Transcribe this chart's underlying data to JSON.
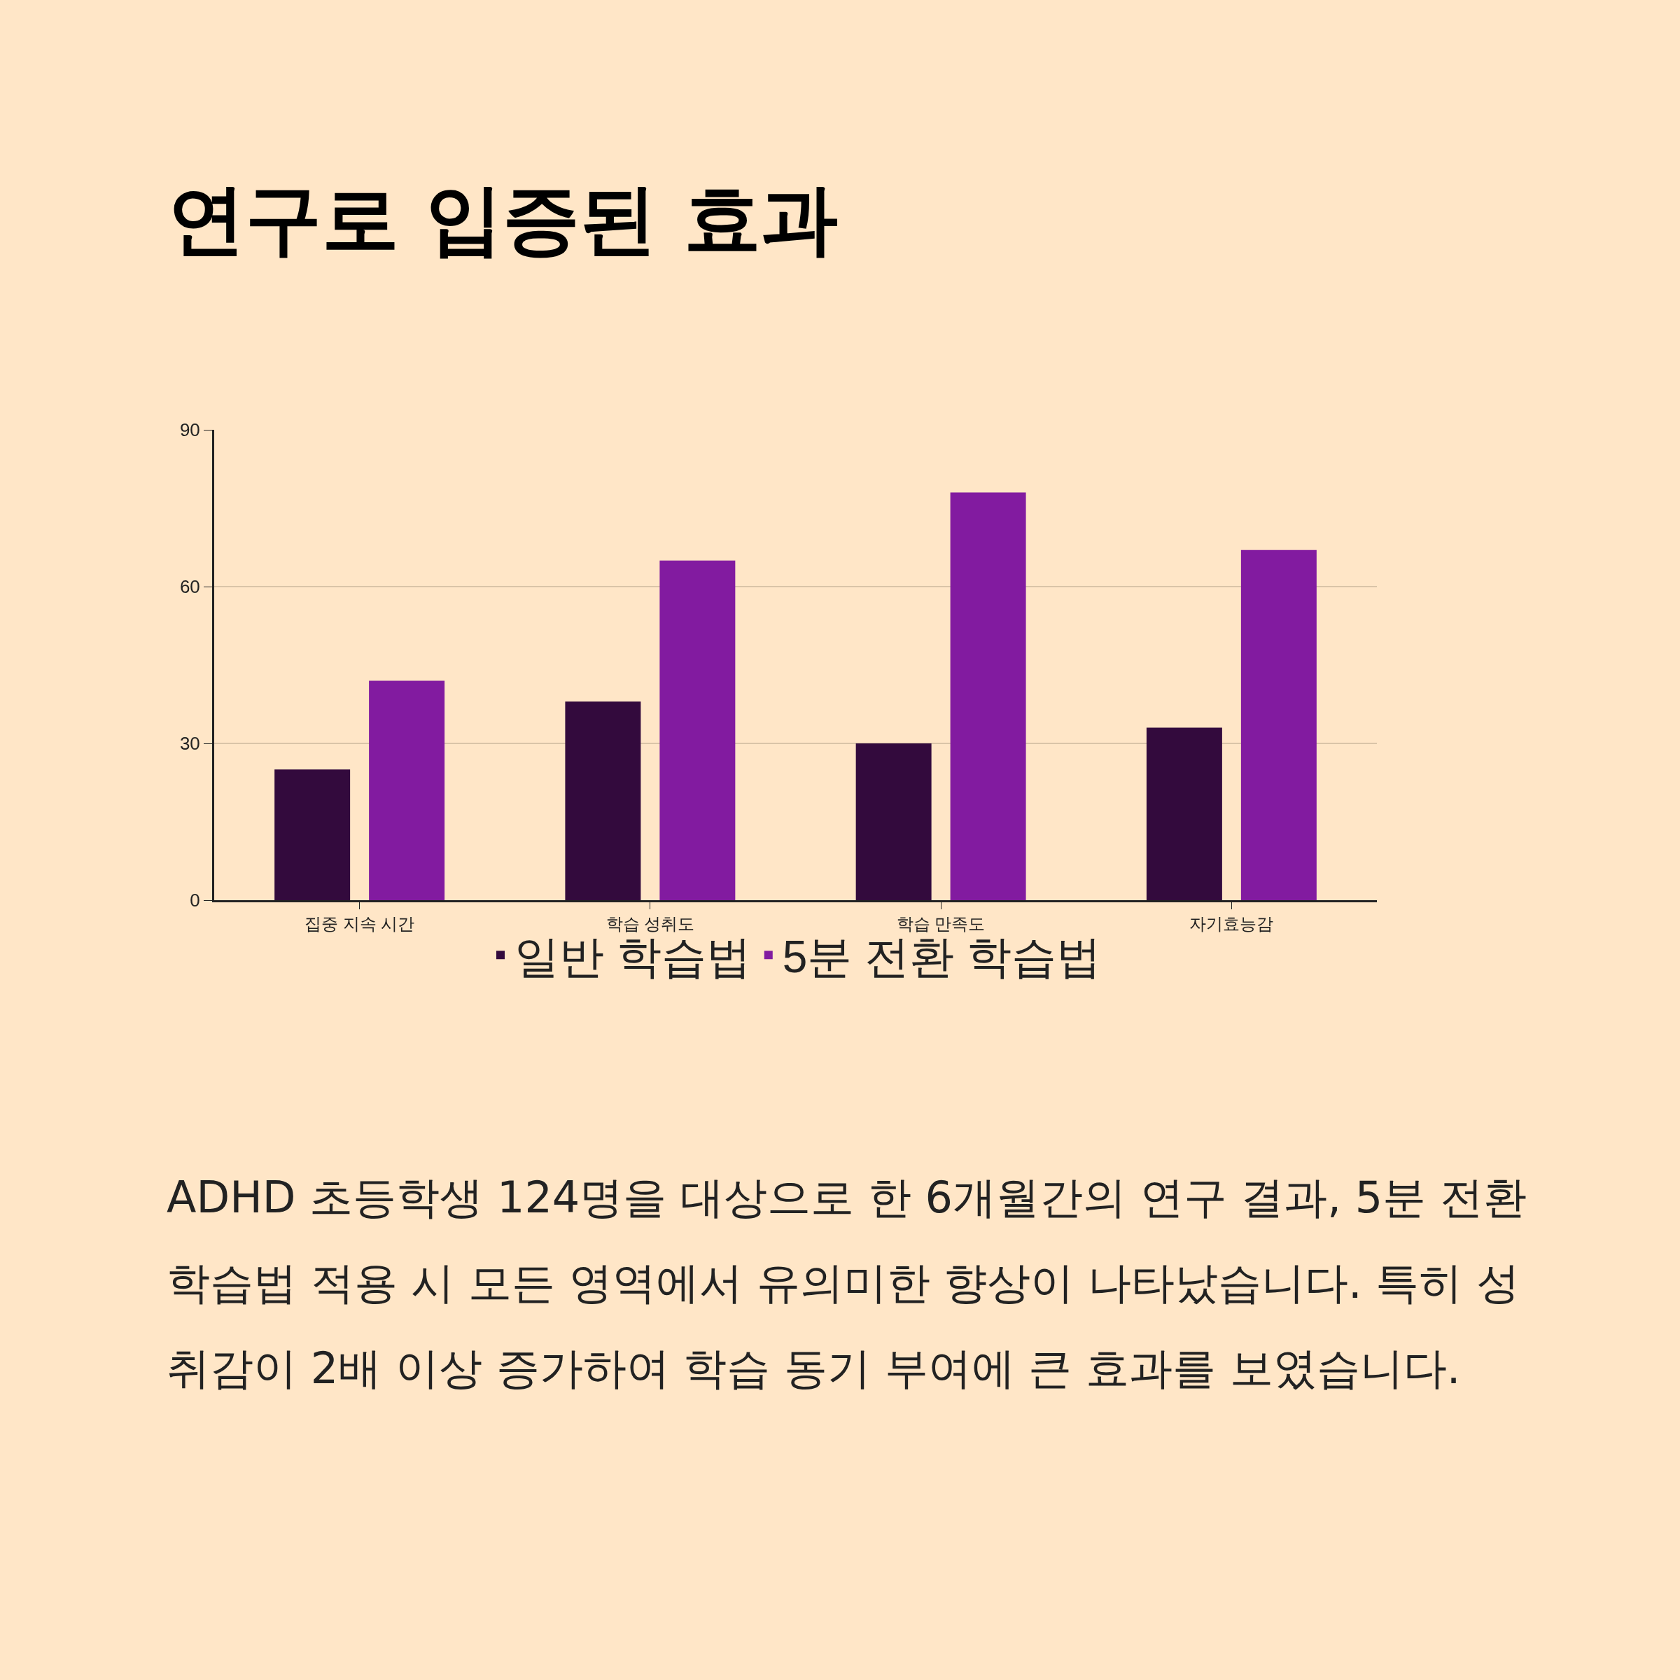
{
  "chart_data": {
    "type": "bar",
    "title": "연구로 입증된 효과",
    "categories": [
      "집중 지속 시간",
      "학습 성취도",
      "학습 만족도",
      "자기효능감"
    ],
    "series": [
      {
        "name": "일반 학습법",
        "color": "#330a3d",
        "values": [
          25,
          38,
          30,
          33
        ]
      },
      {
        "name": "5분 전환 학습법",
        "color": "#821ba0",
        "values": [
          42,
          65,
          78,
          67
        ]
      }
    ],
    "ylim": [
      0,
      90
    ],
    "yticks": [
      0,
      30,
      60,
      90
    ],
    "grid": "y",
    "legend": "bottom",
    "annotations": [
      "ADHD 초등학생 124명을 대상으로 한 6개월간의 연구 결과, 5분 전환 학습법 적용 시 모든 영역에서 유의미한 향상이 나타났습니다. 특히 성취감이 2배 이상 증가하여 학습 동기 부여에 큰 효과를 보였습니다."
    ]
  }
}
